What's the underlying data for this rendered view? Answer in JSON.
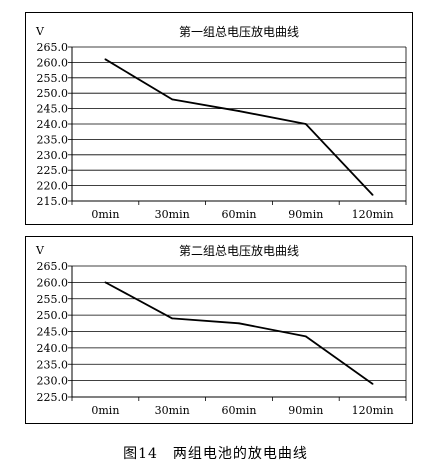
{
  "figure_caption": "图14　两组电池的放电曲线",
  "chart_data": [
    {
      "type": "line",
      "title": "第一组总电压放电曲线",
      "ylabel": "V",
      "xlabel": "",
      "categories": [
        "0min",
        "30min",
        "60min",
        "90min",
        "120min"
      ],
      "series": [
        {
          "values": [
            261.0,
            248.0,
            244.2,
            240.0,
            217.0
          ]
        }
      ],
      "yticks": [
        "265.0",
        "260.0",
        "255.0",
        "250.0",
        "245.0",
        "240.0",
        "235.0",
        "230.0",
        "225.0",
        "220.0",
        "215.0"
      ],
      "ylim": [
        215,
        265
      ],
      "grid": true,
      "line_color": "#000000"
    },
    {
      "type": "line",
      "title": "第二组总电压放电曲线",
      "ylabel": "V",
      "xlabel": "",
      "categories": [
        "0min",
        "30min",
        "60min",
        "90min",
        "120min"
      ],
      "series": [
        {
          "values": [
            260.0,
            249.0,
            247.5,
            243.5,
            229.0
          ]
        }
      ],
      "yticks": [
        "265.0",
        "260.0",
        "255.0",
        "250.0",
        "245.0",
        "240.0",
        "235.0",
        "230.0",
        "225.0"
      ],
      "ylim": [
        225,
        265
      ],
      "grid": true,
      "line_color": "#000000"
    }
  ]
}
